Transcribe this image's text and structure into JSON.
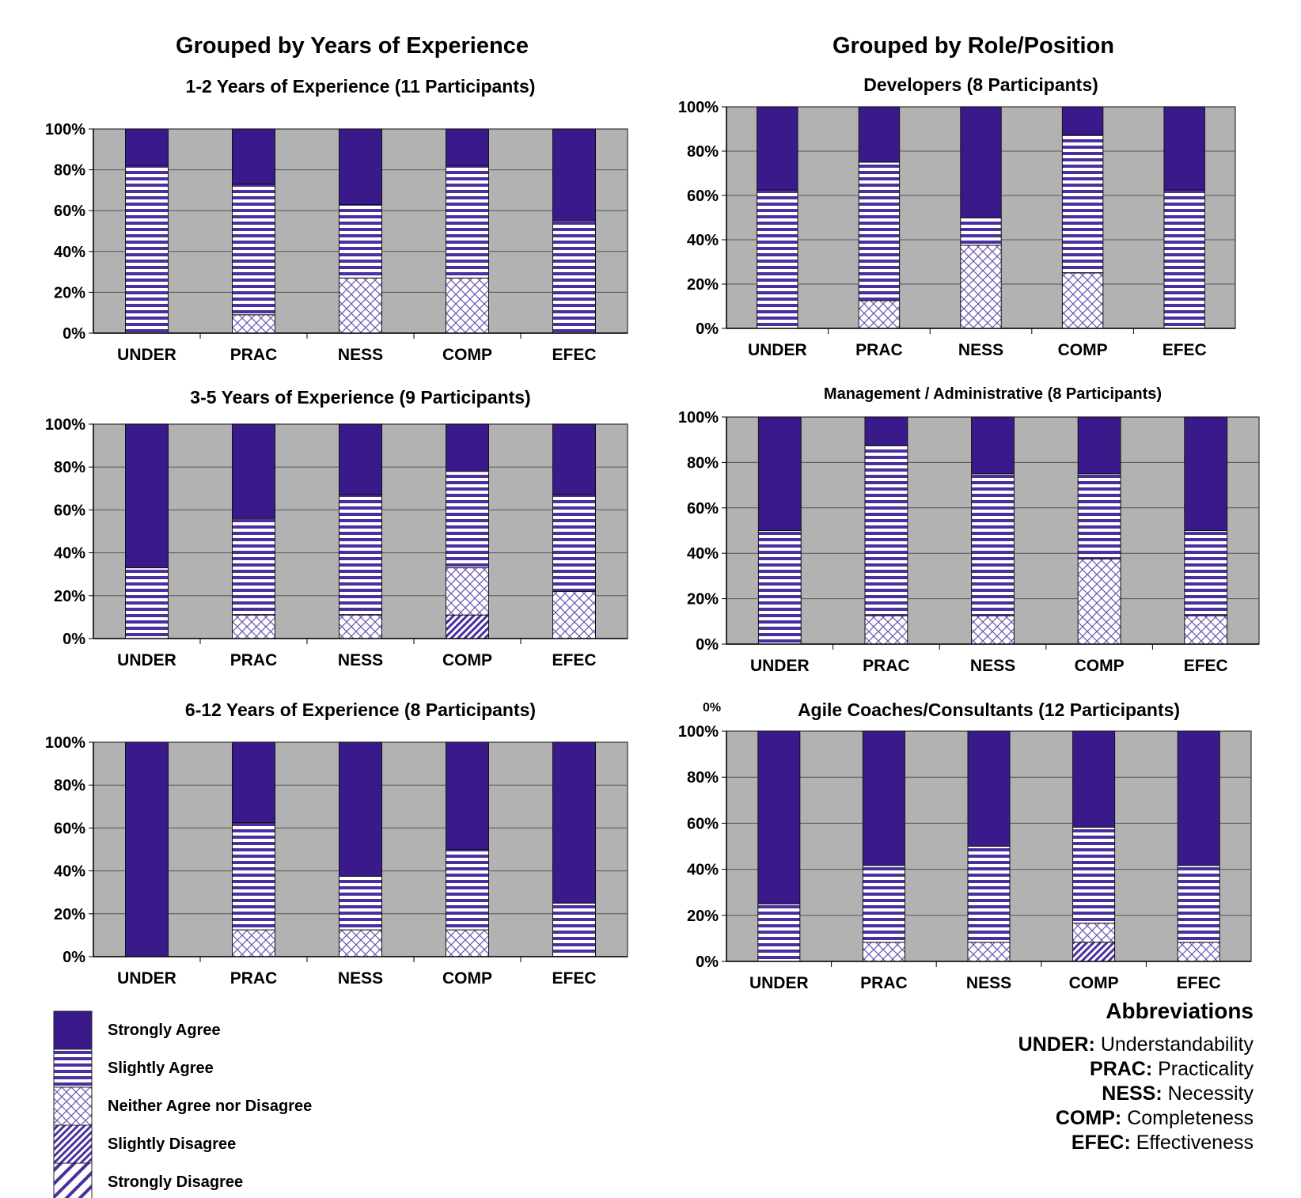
{
  "headings": {
    "left": "Grouped by Years of Experience",
    "right": "Grouped by Role/Position"
  },
  "colors": {
    "strongly_agree": "#3a1a8a",
    "pattern_ink": "#4a2fa0",
    "plot_background": "#b2b2b2"
  },
  "chart_data": [
    {
      "type": "bar",
      "stacked": true,
      "title": "1-2 Years of Experience (11 Participants)",
      "categories": [
        "UNDER",
        "PRAC",
        "NESS",
        "COMP",
        "EFEC"
      ],
      "y_ticks": [
        "0%",
        "20%",
        "40%",
        "60%",
        "80%",
        "100%"
      ],
      "ylim": [
        0,
        100
      ],
      "grid": true,
      "series": [
        {
          "name": "Strongly Disagree",
          "values": [
            0,
            0,
            0,
            0,
            0
          ]
        },
        {
          "name": "Slightly Disagree",
          "values": [
            0,
            0,
            0,
            0,
            0
          ]
        },
        {
          "name": "Neither Agree nor Disagree",
          "values": [
            0,
            9,
            27,
            27,
            0
          ]
        },
        {
          "name": "Slightly Agree",
          "values": [
            82,
            64,
            36,
            55,
            55
          ]
        },
        {
          "name": "Strongly Agree",
          "values": [
            18,
            27,
            37,
            18,
            45
          ]
        }
      ]
    },
    {
      "type": "bar",
      "stacked": true,
      "title": "3-5 Years of Experience (9 Participants)",
      "categories": [
        "UNDER",
        "PRAC",
        "NESS",
        "COMP",
        "EFEC"
      ],
      "y_ticks": [
        "0%",
        "20%",
        "40%",
        "60%",
        "80%",
        "100%"
      ],
      "ylim": [
        0,
        100
      ],
      "grid": true,
      "series": [
        {
          "name": "Strongly Disagree",
          "values": [
            0,
            0,
            0,
            0,
            0
          ]
        },
        {
          "name": "Slightly Disagree",
          "values": [
            0,
            0,
            0,
            11,
            0
          ]
        },
        {
          "name": "Neither Agree nor Disagree",
          "values": [
            0,
            11,
            11,
            22,
            22
          ]
        },
        {
          "name": "Slightly Agree",
          "values": [
            33,
            45,
            56,
            45,
            45
          ]
        },
        {
          "name": "Strongly Agree",
          "values": [
            67,
            44,
            33,
            22,
            33
          ]
        }
      ]
    },
    {
      "type": "bar",
      "stacked": true,
      "title": "6-12 Years of Experience (8 Participants)",
      "categories": [
        "UNDER",
        "PRAC",
        "NESS",
        "COMP",
        "EFEC"
      ],
      "y_ticks": [
        "0%",
        "20%",
        "40%",
        "60%",
        "80%",
        "100%"
      ],
      "ylim": [
        0,
        100
      ],
      "grid": true,
      "series": [
        {
          "name": "Strongly Disagree",
          "values": [
            0,
            0,
            0,
            0,
            0
          ]
        },
        {
          "name": "Slightly Disagree",
          "values": [
            0,
            0,
            0,
            0,
            0
          ]
        },
        {
          "name": "Neither Agree nor Disagree",
          "values": [
            0,
            12.5,
            12.5,
            12.5,
            0
          ]
        },
        {
          "name": "Slightly Agree",
          "values": [
            0,
            50,
            25,
            37.5,
            25
          ]
        },
        {
          "name": "Strongly Agree",
          "values": [
            100,
            37.5,
            62.5,
            50,
            75
          ]
        }
      ]
    },
    {
      "type": "bar",
      "stacked": true,
      "title": "Developers (8 Participants)",
      "categories": [
        "UNDER",
        "PRAC",
        "NESS",
        "COMP",
        "EFEC"
      ],
      "y_ticks": [
        "0%",
        "20%",
        "40%",
        "60%",
        "80%",
        "100%"
      ],
      "ylim": [
        0,
        100
      ],
      "grid": true,
      "series": [
        {
          "name": "Strongly Disagree",
          "values": [
            0,
            0,
            0,
            0,
            0
          ]
        },
        {
          "name": "Slightly Disagree",
          "values": [
            0,
            0,
            0,
            0,
            0
          ]
        },
        {
          "name": "Neither Agree nor Disagree",
          "values": [
            0,
            12.5,
            37.5,
            25,
            0
          ]
        },
        {
          "name": "Slightly Agree",
          "values": [
            62.5,
            62.5,
            12.5,
            62.5,
            62.5
          ]
        },
        {
          "name": "Strongly Agree",
          "values": [
            37.5,
            25,
            50,
            12.5,
            37.5
          ]
        }
      ]
    },
    {
      "type": "bar",
      "stacked": true,
      "title": "Management / Administrative (8 Participants)",
      "categories": [
        "UNDER",
        "PRAC",
        "NESS",
        "COMP",
        "EFEC"
      ],
      "y_ticks": [
        "0%",
        "20%",
        "40%",
        "60%",
        "80%",
        "100%"
      ],
      "ylim": [
        0,
        100
      ],
      "grid": true,
      "series": [
        {
          "name": "Strongly Disagree",
          "values": [
            0,
            0,
            0,
            0,
            0
          ]
        },
        {
          "name": "Slightly Disagree",
          "values": [
            0,
            0,
            0,
            0,
            0
          ]
        },
        {
          "name": "Neither Agree nor Disagree",
          "values": [
            0,
            12.5,
            12.5,
            37.5,
            12.5
          ]
        },
        {
          "name": "Slightly Agree",
          "values": [
            50,
            75,
            62.5,
            37.5,
            37.5
          ]
        },
        {
          "name": "Strongly Agree",
          "values": [
            50,
            12.5,
            25,
            25,
            50
          ]
        }
      ]
    },
    {
      "type": "bar",
      "stacked": true,
      "title": "Agile Coaches/Consultants (12 Participants)",
      "stray_label": "0%",
      "categories": [
        "UNDER",
        "PRAC",
        "NESS",
        "COMP",
        "EFEC"
      ],
      "y_ticks": [
        "0%",
        "20%",
        "40%",
        "60%",
        "80%",
        "100%"
      ],
      "ylim": [
        0,
        100
      ],
      "grid": true,
      "series": [
        {
          "name": "Strongly Disagree",
          "values": [
            0,
            0,
            0,
            0,
            0
          ]
        },
        {
          "name": "Slightly Disagree",
          "values": [
            0,
            0,
            0,
            8.3,
            0
          ]
        },
        {
          "name": "Neither Agree nor Disagree",
          "values": [
            0,
            8.3,
            8.3,
            8.3,
            8.3
          ]
        },
        {
          "name": "Slightly Agree",
          "values": [
            25,
            33.4,
            41.7,
            41.7,
            33.4
          ]
        },
        {
          "name": "Strongly Agree",
          "values": [
            75,
            58.3,
            50,
            41.7,
            58.3
          ]
        }
      ]
    }
  ],
  "legend": [
    {
      "label": "Strongly Agree",
      "pattern": "solid"
    },
    {
      "label": "Slightly Agree",
      "pattern": "stripes"
    },
    {
      "label": "Neither Agree nor Disagree",
      "pattern": "crosshatch"
    },
    {
      "label": "Slightly Disagree",
      "pattern": "dense-diagonal"
    },
    {
      "label": "Strongly Disagree",
      "pattern": "wide-diagonal"
    }
  ],
  "abbreviations": {
    "title": "Abbreviations",
    "items": [
      {
        "code": "UNDER:",
        "meaning": "Understandability"
      },
      {
        "code": "PRAC:",
        "meaning": "Practicality"
      },
      {
        "code": "NESS:",
        "meaning": "Necessity"
      },
      {
        "code": "COMP:",
        "meaning": "Completeness"
      },
      {
        "code": "EFEC:",
        "meaning": "Effectiveness"
      }
    ]
  }
}
